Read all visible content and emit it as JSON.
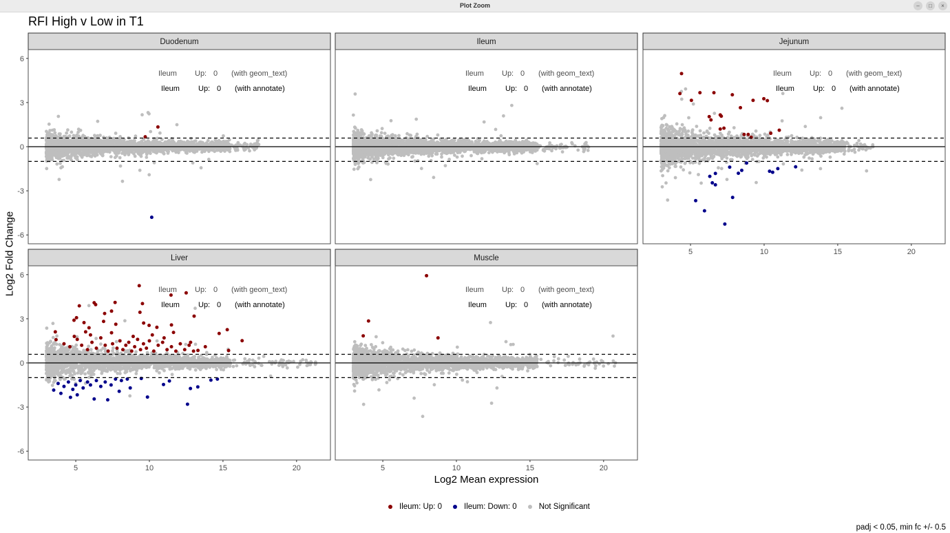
{
  "window": {
    "title": "Plot Zoom",
    "controls": [
      "minimize",
      "restore",
      "close"
    ]
  },
  "chart_data": {
    "type": "scatter",
    "title": "RFI High v Low in T1",
    "xlabel": "Log2 Mean expression",
    "ylabel": "Log2 Fold Change",
    "xlim": [
      1.77,
      22.3
    ],
    "ylim": [
      -6.6,
      6.6
    ],
    "x_ticks": [
      5,
      10,
      15,
      20
    ],
    "y_ticks": [
      -6,
      -3,
      0,
      3,
      6
    ],
    "grid": false,
    "hlines": {
      "solid": 0,
      "dashed": [
        0.585,
        -1
      ]
    },
    "colors": {
      "up": "#8B0000",
      "down": "#00008B",
      "ns": "#BEBEBE"
    },
    "annotations": {
      "geom_text": {
        "tissue": "Ileum",
        "label": "Up:",
        "value": "0",
        "note": "(with geom_text)"
      },
      "annotate": {
        "tissue": "Ileum",
        "label": "Up:",
        "value": "0",
        "note": "(with annotate)"
      }
    },
    "legend": {
      "position": "bottom",
      "items": [
        {
          "label": "Ileum: Up: 0",
          "color": "#8B0000"
        },
        {
          "label": "Ileum: Down: 0",
          "color": "#00008B"
        },
        {
          "label": "Not Significant",
          "color": "#BEBEBE"
        }
      ]
    },
    "caption": "padj < 0.05, min fc +/- 0.5",
    "panels": [
      {
        "name": "Duodenum",
        "up": [
          [
            10.58,
            1.34
          ],
          [
            9.72,
            0.67
          ]
        ],
        "down": [
          [
            10.16,
            -4.8
          ]
        ]
      },
      {
        "name": "Ileum",
        "up": [],
        "down": []
      },
      {
        "name": "Jejunum",
        "up": [
          [
            4.39,
            4.97
          ],
          [
            4.28,
            3.61
          ],
          [
            5.64,
            3.67
          ],
          [
            6.59,
            3.67
          ],
          [
            7.84,
            3.53
          ],
          [
            9.25,
            3.15
          ],
          [
            9.98,
            3.26
          ],
          [
            10.22,
            3.13
          ],
          [
            5.06,
            3.15
          ],
          [
            8.39,
            2.65
          ],
          [
            6.27,
            2.04
          ],
          [
            6.39,
            1.82
          ],
          [
            7.02,
            2.16
          ],
          [
            7.09,
            2.07
          ],
          [
            7.02,
            1.2
          ],
          [
            7.27,
            1.26
          ],
          [
            11.03,
            1.12
          ],
          [
            10.45,
            0.91
          ],
          [
            8.64,
            0.83
          ],
          [
            8.92,
            0.83
          ],
          [
            9.12,
            0.64
          ]
        ],
        "down": [
          [
            8.81,
            -1.11
          ],
          [
            7.66,
            -1.39
          ],
          [
            8.25,
            -1.81
          ],
          [
            8.48,
            -1.61
          ],
          [
            6.31,
            -2.02
          ],
          [
            6.69,
            -1.82
          ],
          [
            6.48,
            -2.46
          ],
          [
            6.69,
            -2.59
          ],
          [
            10.37,
            -1.67
          ],
          [
            10.58,
            -1.74
          ],
          [
            10.93,
            -1.49
          ],
          [
            12.14,
            -1.37
          ],
          [
            5.35,
            -3.67
          ],
          [
            7.86,
            -3.45
          ],
          [
            5.95,
            -4.36
          ],
          [
            7.33,
            -5.26
          ]
        ]
      },
      {
        "name": "Liver",
        "up": [
          [
            9.31,
            5.25
          ],
          [
            11.47,
            4.61
          ],
          [
            12.5,
            4.76
          ],
          [
            6.25,
            4.09
          ],
          [
            6.35,
            3.96
          ],
          [
            7.67,
            4.11
          ],
          [
            5.24,
            3.88
          ],
          [
            9.53,
            4.03
          ],
          [
            9.36,
            3.44
          ],
          [
            6.96,
            3.36
          ],
          [
            7.43,
            3.52
          ],
          [
            5.05,
            3.07
          ],
          [
            4.88,
            2.9
          ],
          [
            13.04,
            3.18
          ],
          [
            5.56,
            2.74
          ],
          [
            6.89,
            2.82
          ],
          [
            9.61,
            2.71
          ],
          [
            11.5,
            2.58
          ],
          [
            7.72,
            2.63
          ],
          [
            9.98,
            2.55
          ],
          [
            10.51,
            2.42
          ],
          [
            15.29,
            2.26
          ],
          [
            14.74,
            2.0
          ],
          [
            16.3,
            1.51
          ],
          [
            3.61,
            2.11
          ],
          [
            3.66,
            1.58
          ],
          [
            5.67,
            2.11
          ],
          [
            5.9,
            2.39
          ],
          [
            7.43,
            2.05
          ],
          [
            11.64,
            2.07
          ],
          [
            13.8,
            1.1
          ],
          [
            15.38,
            0.84
          ],
          [
            4.2,
            1.3
          ],
          [
            4.6,
            1.1
          ],
          [
            5.1,
            1.6
          ],
          [
            5.4,
            1.2
          ],
          [
            5.8,
            0.9
          ],
          [
            6.1,
            1.4
          ],
          [
            6.4,
            1.0
          ],
          [
            6.7,
            1.7
          ],
          [
            7.0,
            1.2
          ],
          [
            7.2,
            0.8
          ],
          [
            7.5,
            1.3
          ],
          [
            7.8,
            1.0
          ],
          [
            8.0,
            1.5
          ],
          [
            8.2,
            0.9
          ],
          [
            8.4,
            1.2
          ],
          [
            8.6,
            1.4
          ],
          [
            8.8,
            0.8
          ],
          [
            9.0,
            1.1
          ],
          [
            9.2,
            1.6
          ],
          [
            9.4,
            0.9
          ],
          [
            9.6,
            1.3
          ],
          [
            9.8,
            1.0
          ],
          [
            10.0,
            1.5
          ],
          [
            10.3,
            0.8
          ],
          [
            10.6,
            1.2
          ],
          [
            10.9,
            1.4
          ],
          [
            11.2,
            0.9
          ],
          [
            11.5,
            1.1
          ],
          [
            11.8,
            0.8
          ],
          [
            12.1,
            1.3
          ],
          [
            12.4,
            0.9
          ],
          [
            12.7,
            1.2
          ],
          [
            13.0,
            0.8
          ],
          [
            13.3,
            0.85
          ],
          [
            8.9,
            1.8
          ],
          [
            6.0,
            1.9
          ],
          [
            4.9,
            1.8
          ],
          [
            10.2,
            1.9
          ],
          [
            11.0,
            1.7
          ],
          [
            12.8,
            1.4
          ]
        ],
        "down": [
          [
            3.5,
            -1.85
          ],
          [
            3.99,
            -2.07
          ],
          [
            4.64,
            -2.34
          ],
          [
            5.1,
            -2.17
          ],
          [
            6.25,
            -2.45
          ],
          [
            7.17,
            -2.51
          ],
          [
            7.95,
            -1.93
          ],
          [
            9.87,
            -2.32
          ],
          [
            12.59,
            -2.81
          ],
          [
            12.79,
            -1.74
          ],
          [
            13.29,
            -1.63
          ],
          [
            8.7,
            -1.7
          ],
          [
            10.96,
            -1.47
          ],
          [
            11.36,
            -1.23
          ],
          [
            14.18,
            -1.17
          ],
          [
            14.62,
            -1.1
          ],
          [
            9.45,
            -1.06
          ],
          [
            3.8,
            -1.4
          ],
          [
            4.2,
            -1.6
          ],
          [
            4.5,
            -1.3
          ],
          [
            4.8,
            -1.8
          ],
          [
            5.0,
            -1.5
          ],
          [
            5.3,
            -1.2
          ],
          [
            5.5,
            -1.7
          ],
          [
            5.8,
            -1.3
          ],
          [
            6.0,
            -1.5
          ],
          [
            6.4,
            -1.2
          ],
          [
            6.7,
            -1.6
          ],
          [
            7.0,
            -1.3
          ],
          [
            7.4,
            -1.5
          ],
          [
            7.7,
            -1.1
          ],
          [
            8.1,
            -1.2
          ],
          [
            8.5,
            -1.1
          ]
        ]
      },
      {
        "name": "Muscle",
        "up": [
          [
            7.97,
            5.93
          ],
          [
            4.03,
            2.85
          ],
          [
            3.67,
            1.84
          ],
          [
            8.75,
            1.7
          ]
        ],
        "down": []
      }
    ]
  }
}
